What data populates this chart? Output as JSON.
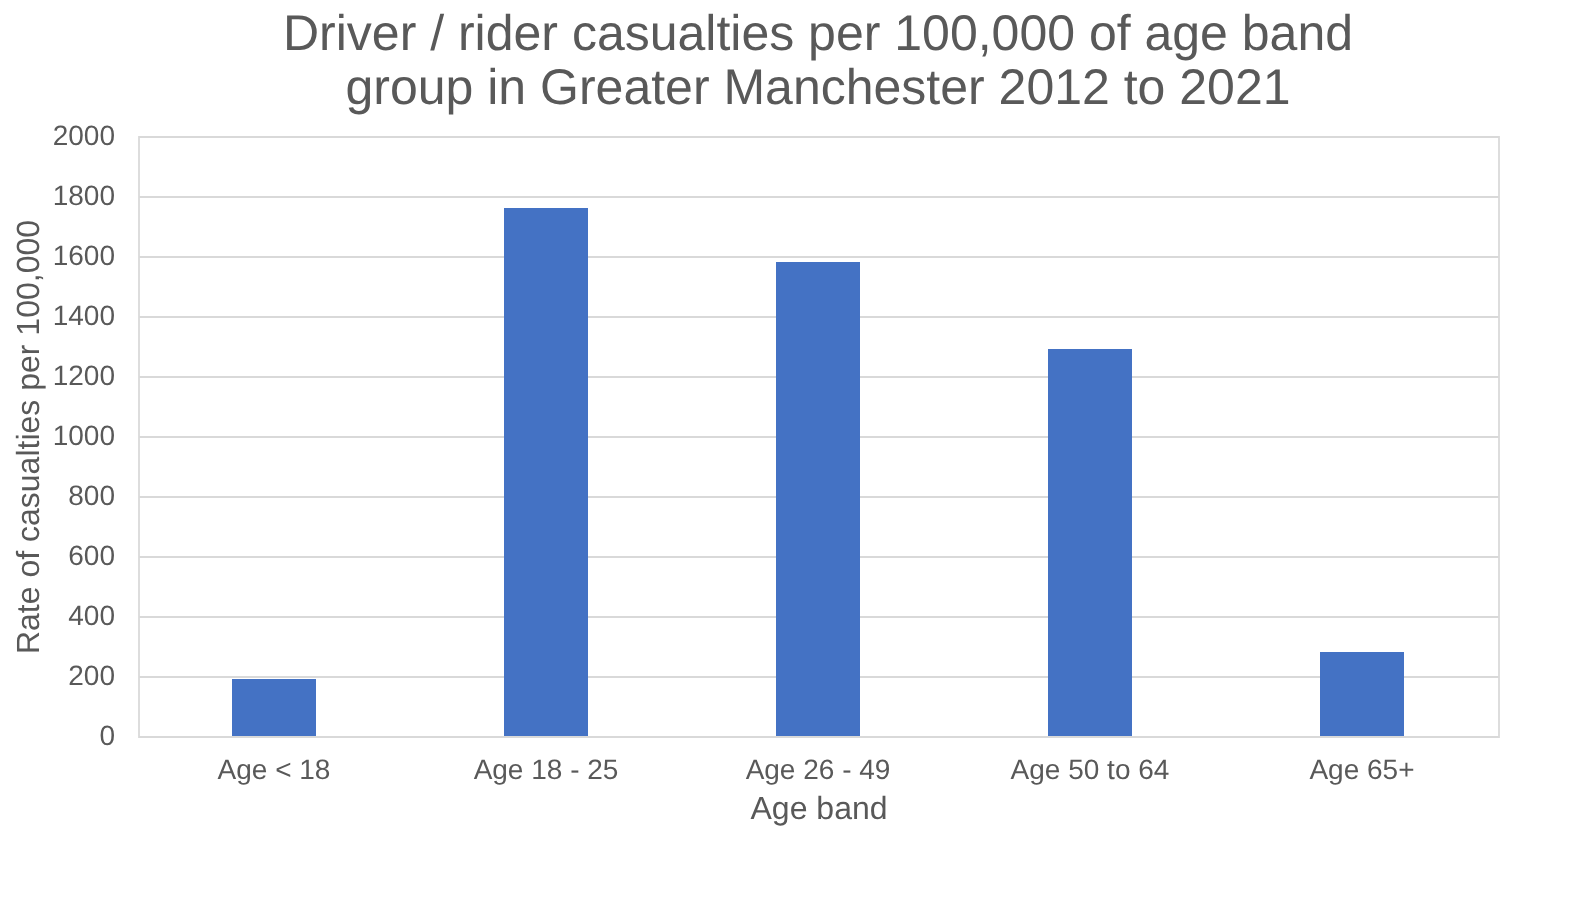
{
  "chart_data": {
    "type": "bar",
    "title": [
      "Driver  / rider casualties per 100,000 of age band",
      "group in Greater Manchester 2012 to 2021"
    ],
    "xlabel": "Age band",
    "ylabel": "Rate of casualties per 100,000",
    "categories": [
      "Age < 18",
      "Age 18 - 25",
      "Age 26 - 49",
      "Age 50 to 64",
      "Age 65+"
    ],
    "values": [
      190,
      1760,
      1580,
      1290,
      280
    ],
    "color": "#4472c4",
    "ylim": [
      0,
      2000
    ],
    "yticks": [
      0,
      200,
      400,
      600,
      800,
      1000,
      1200,
      1400,
      1600,
      1800,
      2000
    ],
    "grid": "y"
  }
}
